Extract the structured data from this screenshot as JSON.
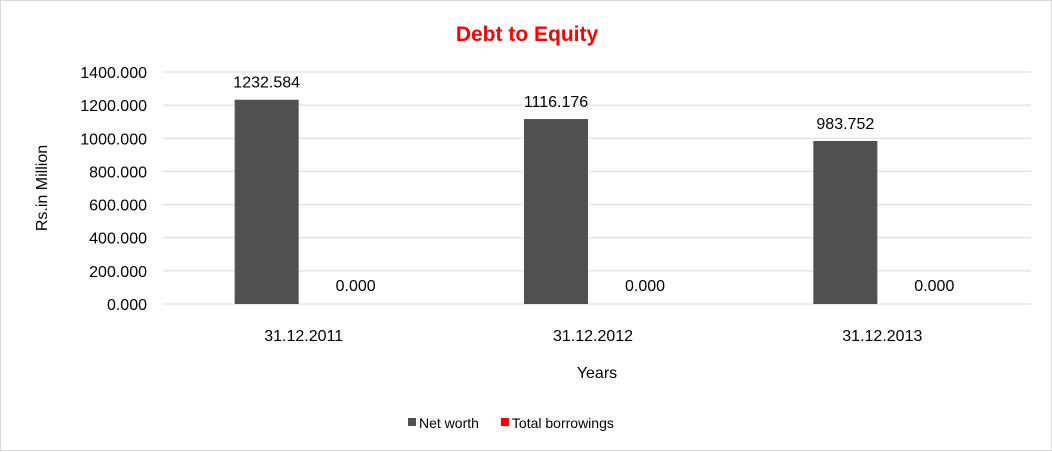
{
  "chart_data": {
    "type": "bar",
    "title": "Debt to Equity",
    "xlabel": "Years",
    "ylabel": "Rs.in Million",
    "categories": [
      "31.12.2011",
      "31.12.2012",
      "31.12.2013"
    ],
    "series": [
      {
        "name": "Net worth",
        "values": [
          1232.584,
          1116.176,
          983.752
        ],
        "labels": [
          "1232.584",
          "1116.176",
          "983.752"
        ],
        "color": "#505050"
      },
      {
        "name": "Total borrowings",
        "values": [
          0,
          0,
          0
        ],
        "labels": [
          "0.000",
          "0.000",
          "0.000"
        ],
        "color": "#ff0000"
      }
    ],
    "yticks": [
      "0.000",
      "200.000",
      "400.000",
      "600.000",
      "800.000",
      "1000.000",
      "1200.000",
      "1400.000"
    ],
    "ylim": [
      0,
      1400
    ],
    "grid": true,
    "legend": "bottom",
    "title_color": "#ff0000"
  }
}
